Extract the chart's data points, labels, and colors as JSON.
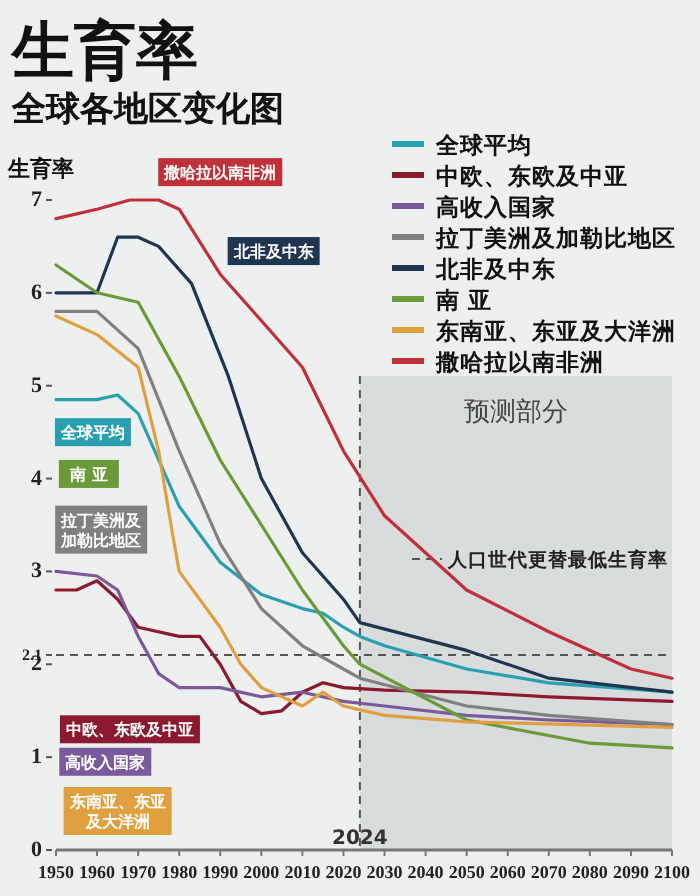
{
  "chart_data": {
    "type": "line",
    "title": "生育率",
    "subtitle": "全球各地区变化图",
    "ylabel": "生育率",
    "xlim": [
      1950,
      2100
    ],
    "xticks": [
      1950,
      1960,
      1970,
      1980,
      1990,
      2000,
      2010,
      2020,
      2030,
      2040,
      2050,
      2060,
      2070,
      2080,
      2090,
      2100
    ],
    "ylim": [
      0,
      7
    ],
    "yticks": [
      0,
      1,
      2,
      {
        "value": 2.1,
        "label": "2.1"
      },
      3,
      4,
      5,
      6,
      7
    ],
    "legend": "top right",
    "line_style": "solid",
    "series": [
      {
        "name": "全球平均",
        "color": "#2a9fb0",
        "x": [
          1950,
          1960,
          1965,
          1970,
          1976,
          1980,
          1990,
          2000,
          2010,
          2015,
          2020,
          2024,
          2030,
          2050,
          2070,
          2100
        ],
        "values": [
          4.85,
          4.85,
          4.9,
          4.7,
          4.1,
          3.7,
          3.1,
          2.75,
          2.6,
          2.55,
          2.4,
          2.3,
          2.2,
          1.95,
          1.8,
          1.7
        ]
      },
      {
        "name": "中欧、东欧及中亚",
        "color": "#8b1a2e",
        "x": [
          1950,
          1955,
          1960,
          1965,
          1970,
          1980,
          1985,
          1990,
          1995,
          2000,
          2005,
          2010,
          2015,
          2020,
          2030,
          2050,
          2070,
          2100
        ],
        "values": [
          2.8,
          2.8,
          2.9,
          2.7,
          2.4,
          2.3,
          2.3,
          2.0,
          1.6,
          1.47,
          1.5,
          1.7,
          1.8,
          1.75,
          1.72,
          1.7,
          1.65,
          1.6
        ]
      },
      {
        "name": "高收入国家",
        "color": "#7a5a9a",
        "x": [
          1950,
          1960,
          1965,
          1970,
          1975,
          1980,
          1990,
          2000,
          2010,
          2020,
          2030,
          2050,
          2070,
          2100
        ],
        "values": [
          3.0,
          2.95,
          2.8,
          2.3,
          1.9,
          1.75,
          1.75,
          1.65,
          1.7,
          1.6,
          1.55,
          1.45,
          1.4,
          1.35
        ]
      },
      {
        "name": "拉丁美洲及加勒比地区",
        "color": "#808080",
        "x": [
          1950,
          1960,
          1970,
          1980,
          1990,
          2000,
          2010,
          2020,
          2024,
          2050,
          2070,
          2100
        ],
        "values": [
          5.8,
          5.8,
          5.4,
          4.3,
          3.3,
          2.6,
          2.2,
          1.95,
          1.85,
          1.55,
          1.45,
          1.35
        ]
      },
      {
        "name": "北非及中东",
        "color": "#1f3550",
        "x": [
          1950,
          1960,
          1965,
          1970,
          1975,
          1983,
          1992,
          2000,
          2010,
          2020,
          2024,
          2050,
          2070,
          2100
        ],
        "values": [
          6.0,
          6.0,
          6.6,
          6.6,
          6.5,
          6.1,
          5.1,
          4.0,
          3.2,
          2.7,
          2.45,
          2.15,
          1.85,
          1.7
        ]
      },
      {
        "name": "南 亚",
        "color": "#6a9a3a",
        "x": [
          1950,
          1960,
          1970,
          1980,
          1990,
          2000,
          2010,
          2020,
          2024,
          2050,
          2080,
          2100
        ],
        "values": [
          6.3,
          6.0,
          5.9,
          5.1,
          4.2,
          3.5,
          2.8,
          2.2,
          2.0,
          1.4,
          1.15,
          1.1
        ]
      },
      {
        "name": "东南亚、东亚及大洋洲",
        "color": "#e0a040",
        "x": [
          1950,
          1960,
          1970,
          1975,
          1978,
          1980,
          1990,
          1995,
          2000,
          2010,
          2015,
          2020,
          2030,
          2050,
          2100
        ],
        "values": [
          5.75,
          5.55,
          5.2,
          4.3,
          3.5,
          3.0,
          2.4,
          2.0,
          1.75,
          1.55,
          1.7,
          1.55,
          1.45,
          1.38,
          1.32
        ]
      },
      {
        "name": "撒哈拉以南非洲",
        "color": "#c0303a",
        "x": [
          1950,
          1960,
          1968,
          1975,
          1980,
          1990,
          2000,
          2010,
          2020,
          2030,
          2050,
          2070,
          2090,
          2100
        ],
        "values": [
          6.8,
          6.9,
          7.0,
          7.0,
          6.9,
          6.2,
          5.7,
          5.2,
          4.3,
          3.6,
          2.8,
          2.35,
          1.95,
          1.85
        ]
      }
    ],
    "ref_lines": [
      {
        "axis": "y",
        "value": 2.1,
        "label": "人口世代更替最低生育率",
        "line_style": "dashed",
        "color": "#555555"
      },
      {
        "axis": "x",
        "value": 2024,
        "label": "2024",
        "line_style": "dashed",
        "color": "#555555"
      }
    ],
    "bands": [
      {
        "axis": "x",
        "from": 2024,
        "to": 2100,
        "label": "预测部分",
        "color": "#d9dcdc"
      }
    ]
  }
}
